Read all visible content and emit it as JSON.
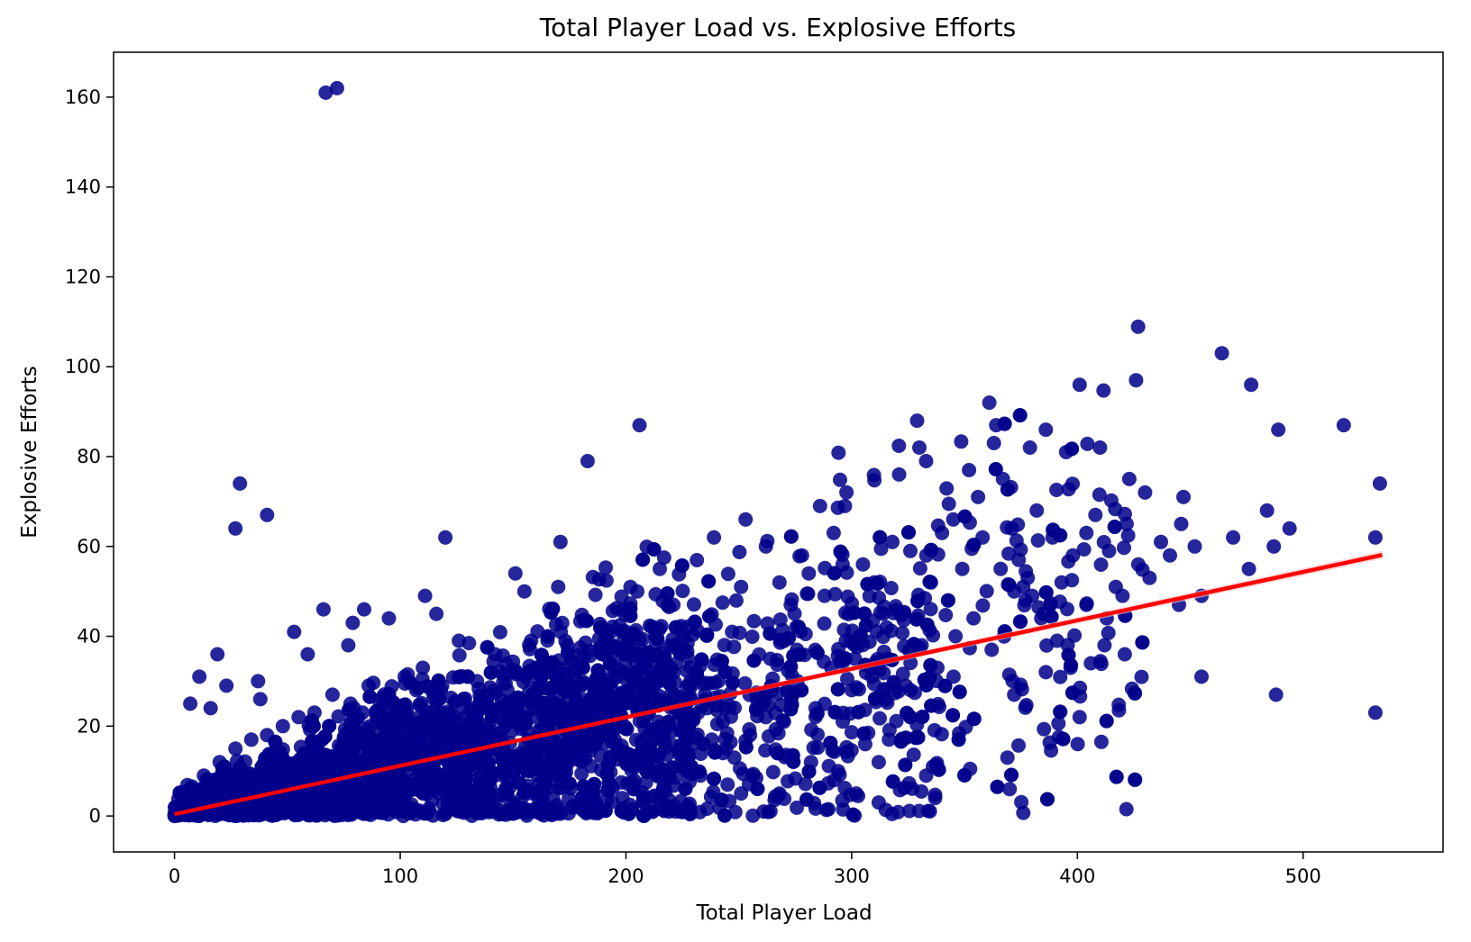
{
  "chart_data": {
    "type": "scatter",
    "title": "Total Player Load vs. Explosive Efforts",
    "xlabel": "Total Player Load",
    "ylabel": "Explosive Efforts",
    "xlim": [
      -27,
      562
    ],
    "ylim": [
      -8,
      170
    ],
    "xticks": [
      0,
      100,
      200,
      300,
      400,
      500
    ],
    "yticks": [
      0,
      20,
      40,
      60,
      80,
      100,
      120,
      140,
      160
    ],
    "xtick_labels": [
      "0",
      "100",
      "200",
      "300",
      "400",
      "500"
    ],
    "ytick_labels": [
      "0",
      "20",
      "40",
      "60",
      "80",
      "100",
      "120",
      "140",
      "160"
    ],
    "grid": false,
    "legend": "none",
    "colors": {
      "points": "#00008b",
      "regression_line": "#ff0000",
      "confidence_band": "#f4c7c7"
    },
    "regression_line": {
      "x": [
        0,
        535
      ],
      "y": [
        0.4,
        58.1
      ]
    },
    "points": [
      [
        67,
        161
      ],
      [
        72,
        162
      ],
      [
        29,
        74
      ],
      [
        27,
        64
      ],
      [
        41,
        67
      ],
      [
        120,
        62
      ],
      [
        183,
        79
      ],
      [
        206,
        87
      ],
      [
        171,
        61
      ],
      [
        19,
        36
      ],
      [
        23,
        29
      ],
      [
        11,
        31
      ],
      [
        7,
        25
      ],
      [
        16,
        24
      ],
      [
        37,
        30
      ],
      [
        38,
        26
      ],
      [
        53,
        41
      ],
      [
        59,
        36
      ],
      [
        66,
        46
      ],
      [
        79,
        43
      ],
      [
        84,
        46
      ],
      [
        95,
        44
      ],
      [
        77,
        38
      ],
      [
        111,
        49
      ],
      [
        116,
        45
      ],
      [
        151,
        54
      ],
      [
        155,
        50
      ],
      [
        170,
        51
      ],
      [
        215,
        55
      ],
      [
        221,
        47
      ],
      [
        202,
        51
      ],
      [
        205,
        50
      ],
      [
        239,
        62
      ],
      [
        251,
        51
      ],
      [
        253,
        66
      ],
      [
        262,
        60
      ],
      [
        278,
        58
      ],
      [
        286,
        69
      ],
      [
        297,
        69
      ],
      [
        292,
        63
      ],
      [
        305,
        56
      ],
      [
        321,
        76
      ],
      [
        329,
        88
      ],
      [
        333,
        79
      ],
      [
        330,
        82
      ],
      [
        361,
        92
      ],
      [
        364,
        87
      ],
      [
        363,
        83
      ],
      [
        352,
        77
      ],
      [
        367,
        75
      ],
      [
        379,
        82
      ],
      [
        386,
        86
      ],
      [
        395,
        81
      ],
      [
        401,
        96
      ],
      [
        410,
        82
      ],
      [
        426,
        97
      ],
      [
        423,
        75
      ],
      [
        430,
        72
      ],
      [
        447,
        71
      ],
      [
        446,
        65
      ],
      [
        464,
        103
      ],
      [
        477,
        96
      ],
      [
        489,
        86
      ],
      [
        494,
        64
      ],
      [
        518,
        87
      ],
      [
        534,
        74
      ],
      [
        469,
        62
      ],
      [
        484,
        68
      ],
      [
        487,
        60
      ],
      [
        532,
        62
      ],
      [
        452,
        60
      ],
      [
        476,
        55
      ],
      [
        455,
        49
      ],
      [
        455,
        31
      ],
      [
        488,
        27
      ],
      [
        532,
        23
      ],
      [
        401,
        22
      ],
      [
        412,
        38
      ],
      [
        421,
        36
      ],
      [
        406,
        34
      ],
      [
        397,
        33
      ],
      [
        386,
        32
      ],
      [
        372,
        27
      ],
      [
        369,
        13
      ],
      [
        370,
        6
      ],
      [
        337,
        4
      ],
      [
        312,
        3
      ],
      [
        302,
        5
      ],
      [
        312,
        12
      ],
      [
        306,
        16
      ],
      [
        322,
        17
      ],
      [
        336,
        11
      ],
      [
        333,
        9
      ],
      [
        294,
        10
      ],
      [
        282,
        12
      ],
      [
        268,
        5
      ],
      [
        261,
        1
      ],
      [
        256,
        9
      ],
      [
        251,
        5
      ],
      [
        248,
        13
      ],
      [
        243,
        14
      ],
      [
        238,
        17
      ],
      [
        245,
        7
      ],
      [
        229,
        11
      ],
      [
        233,
        9
      ],
      [
        227,
        19
      ],
      [
        236,
        24
      ],
      [
        241,
        30
      ],
      [
        247,
        41
      ],
      [
        258,
        26
      ],
      [
        264,
        35
      ],
      [
        268,
        52
      ],
      [
        273,
        47
      ],
      [
        281,
        54
      ],
      [
        288,
        49
      ],
      [
        296,
        56
      ],
      [
        310,
        52
      ],
      [
        314,
        45
      ],
      [
        318,
        61
      ],
      [
        326,
        59
      ],
      [
        340,
        63
      ],
      [
        345,
        66
      ],
      [
        349,
        55
      ],
      [
        356,
        71
      ],
      [
        358,
        62
      ],
      [
        366,
        55
      ],
      [
        371,
        64
      ],
      [
        374,
        57
      ],
      [
        382,
        68
      ],
      [
        389,
        62
      ],
      [
        393,
        52
      ],
      [
        398,
        58
      ],
      [
        404,
        63
      ],
      [
        408,
        67
      ],
      [
        414,
        59
      ],
      [
        417,
        51
      ],
      [
        427,
        56
      ],
      [
        432,
        53
      ],
      [
        437,
        61
      ],
      [
        441,
        58
      ],
      [
        445,
        47
      ],
      [
        420,
        49
      ],
      [
        413,
        44
      ],
      [
        404,
        47
      ],
      [
        391,
        39
      ],
      [
        384,
        44
      ],
      [
        377,
        48
      ],
      [
        368,
        41
      ],
      [
        362,
        37
      ],
      [
        354,
        44
      ],
      [
        346,
        40
      ],
      [
        338,
        33
      ],
      [
        331,
        38
      ],
      [
        324,
        29
      ],
      [
        316,
        35
      ],
      [
        309,
        31
      ],
      [
        300,
        28
      ],
      [
        291,
        33
      ],
      [
        284,
        24
      ],
      [
        276,
        30
      ],
      [
        270,
        21
      ],
      [
        262,
        22
      ],
      [
        255,
        18
      ],
      [
        243,
        21
      ],
      [
        235,
        27
      ],
      [
        226,
        22
      ],
      [
        218,
        33
      ],
      [
        210,
        28
      ],
      [
        203,
        37
      ],
      [
        196,
        31
      ],
      [
        189,
        42
      ],
      [
        181,
        35
      ],
      [
        174,
        38
      ],
      [
        166,
        34
      ],
      [
        158,
        39
      ],
      [
        149,
        32
      ],
      [
        142,
        36
      ],
      [
        134,
        30
      ],
      [
        126,
        39
      ],
      [
        118,
        28
      ],
      [
        110,
        33
      ],
      [
        102,
        31
      ],
      [
        94,
        26
      ],
      [
        86,
        29
      ],
      [
        78,
        25
      ],
      [
        70,
        27
      ],
      [
        62,
        23
      ],
      [
        55,
        22
      ],
      [
        48,
        20
      ],
      [
        41,
        18
      ],
      [
        34,
        17
      ],
      [
        27,
        15
      ],
      [
        20,
        12
      ],
      [
        13,
        9
      ],
      [
        8,
        6
      ],
      [
        4,
        3
      ],
      [
        0,
        0
      ],
      [
        2,
        1
      ],
      [
        380,
        49
      ],
      [
        376,
        51
      ],
      [
        388,
        47
      ],
      [
        372,
        50
      ],
      [
        385,
        45
      ],
      [
        378,
        53
      ]
    ]
  }
}
